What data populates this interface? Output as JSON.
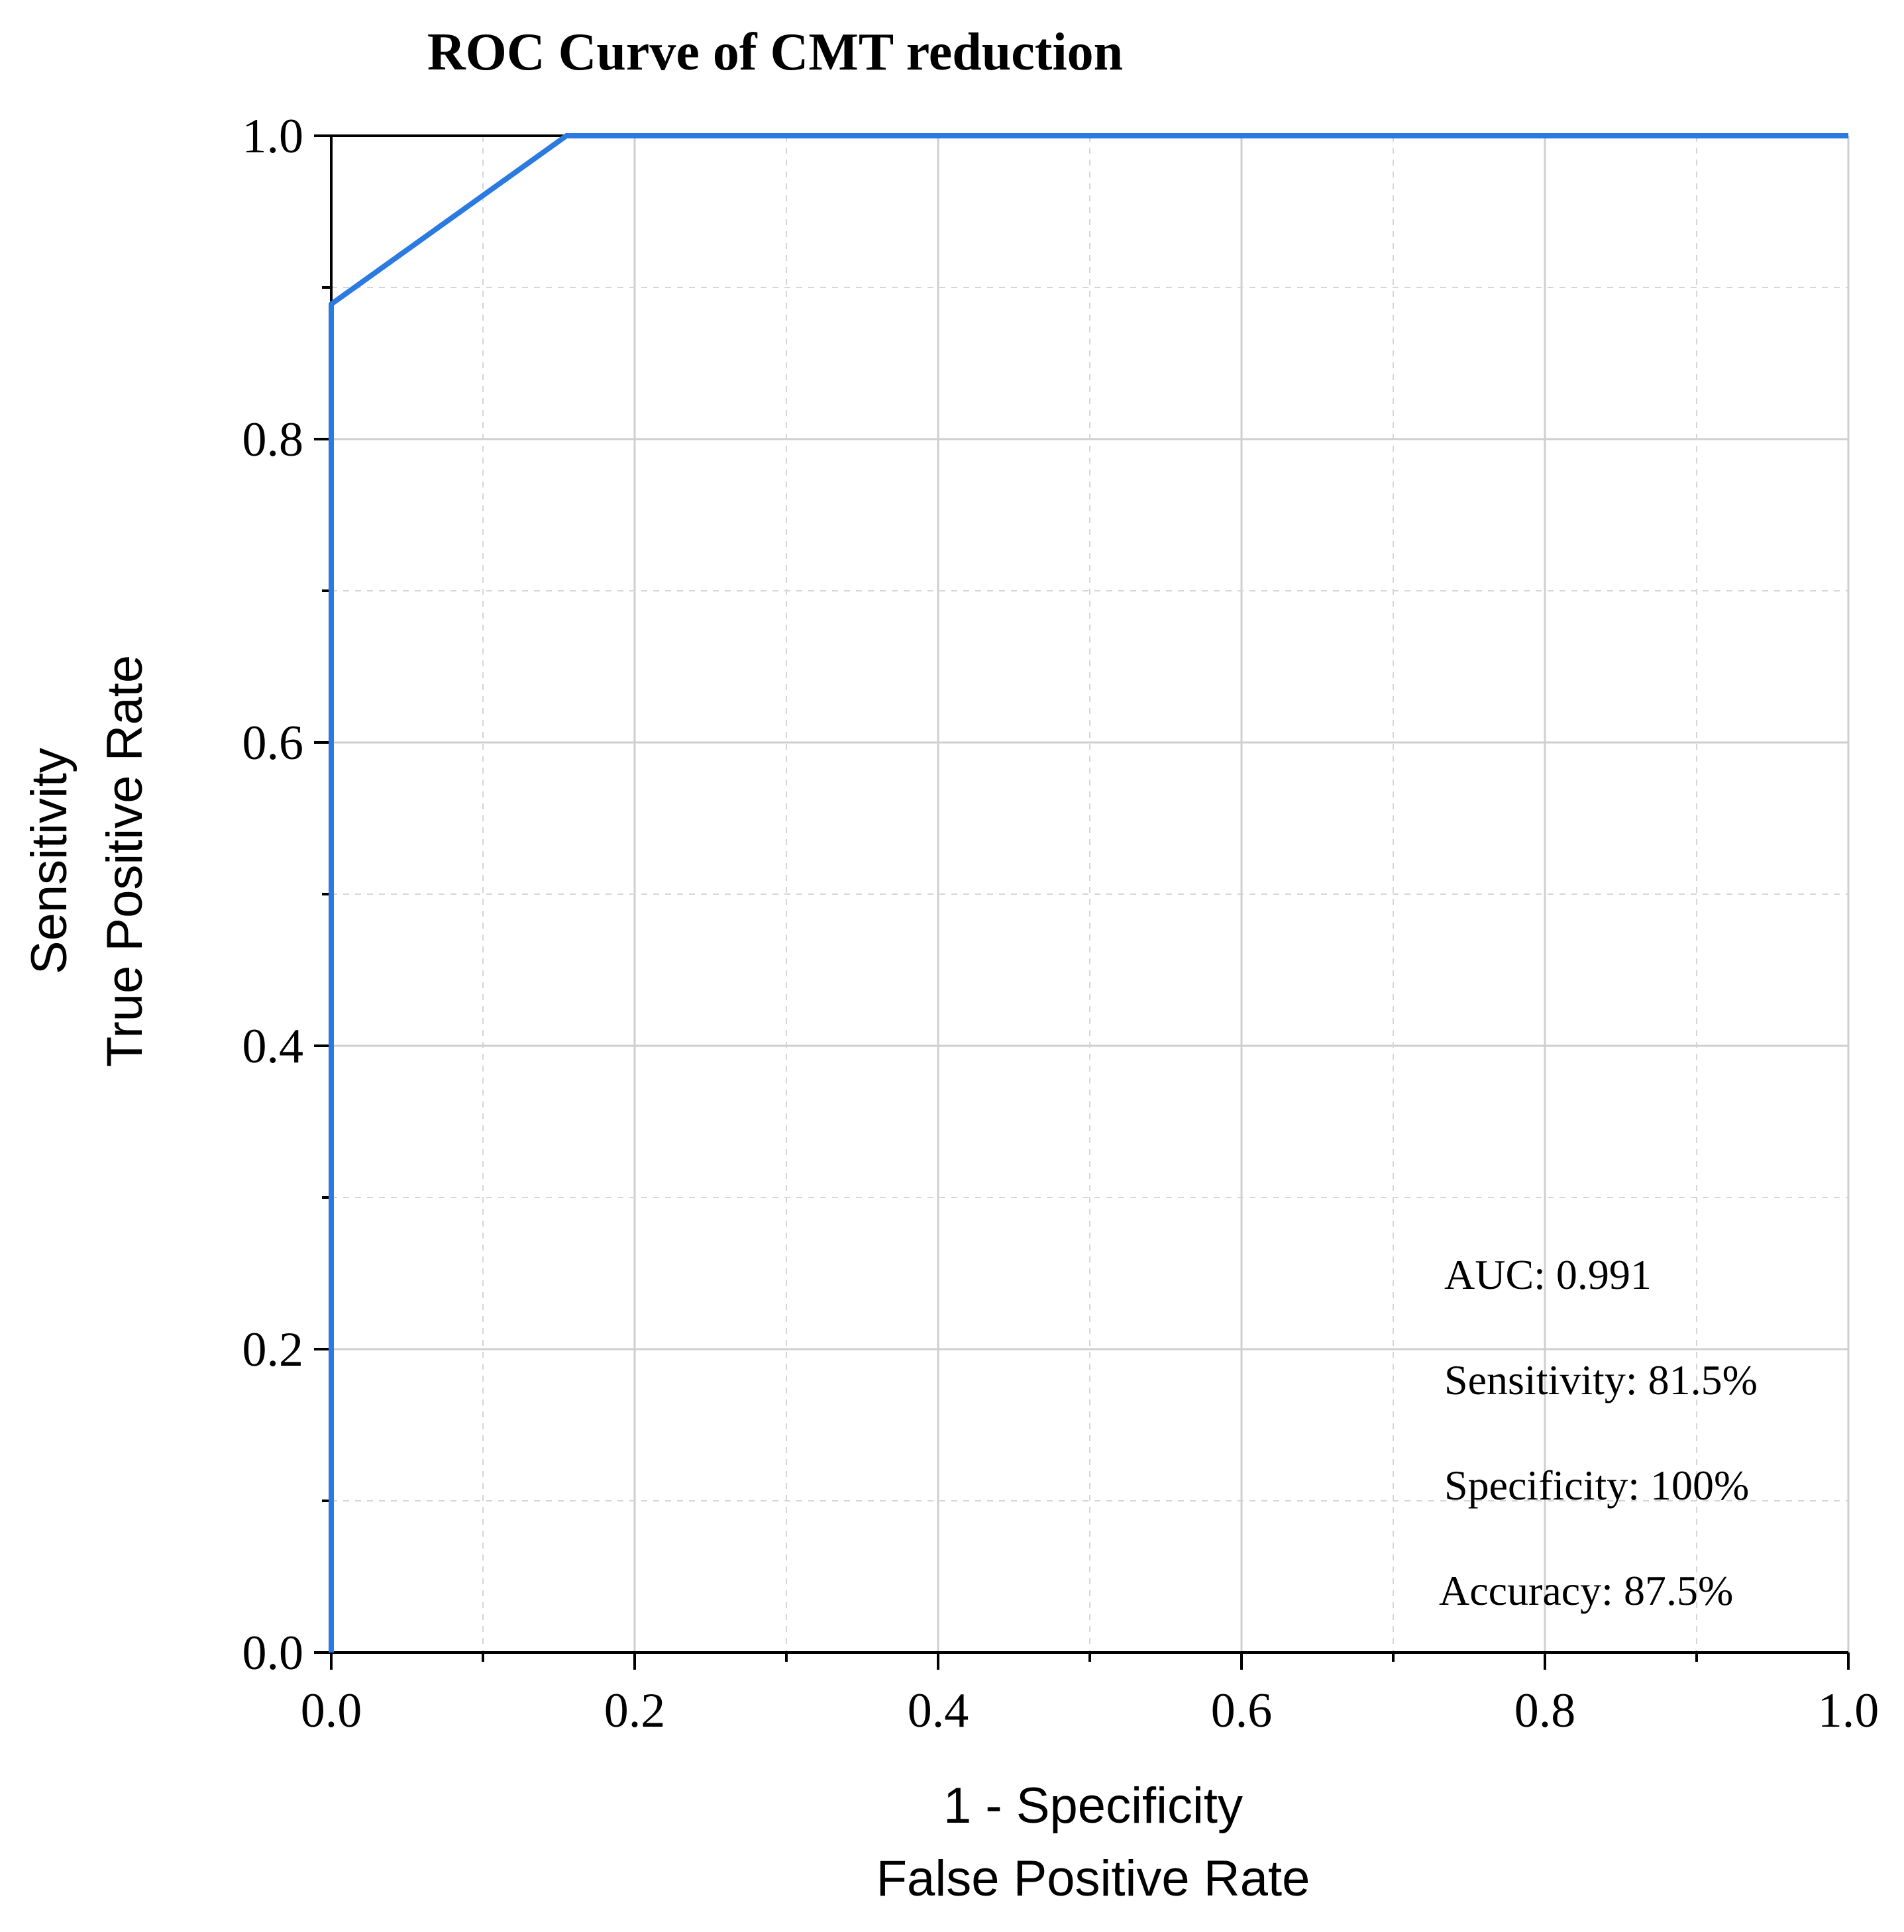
{
  "chart_data": {
    "type": "line",
    "title": "ROC Curve of CMT reduction",
    "xlabel_lines": [
      "1 - Specificity",
      "False Positive Rate"
    ],
    "ylabel_lines": [
      "Sensitivity",
      "True Positive Rate"
    ],
    "xlim": [
      0,
      1
    ],
    "ylim": [
      0,
      1
    ],
    "x_ticks": [
      "0.0",
      "0.2",
      "0.4",
      "0.6",
      "0.8",
      "1.0"
    ],
    "y_ticks": [
      "0.0",
      "0.2",
      "0.4",
      "0.6",
      "0.8",
      "1.0"
    ],
    "grid": true,
    "series": [
      {
        "name": "ROC",
        "color": "#2a7ae2",
        "x": [
          0.0,
          0.0,
          0.155,
          1.0
        ],
        "y": [
          0.0,
          0.889,
          1.0,
          1.0
        ]
      }
    ],
    "annotations": [
      "AUC: 0.991",
      "Sensitivity: 81.5%",
      "Specificity: 100%",
      "Accuracy: 87.5%"
    ]
  }
}
